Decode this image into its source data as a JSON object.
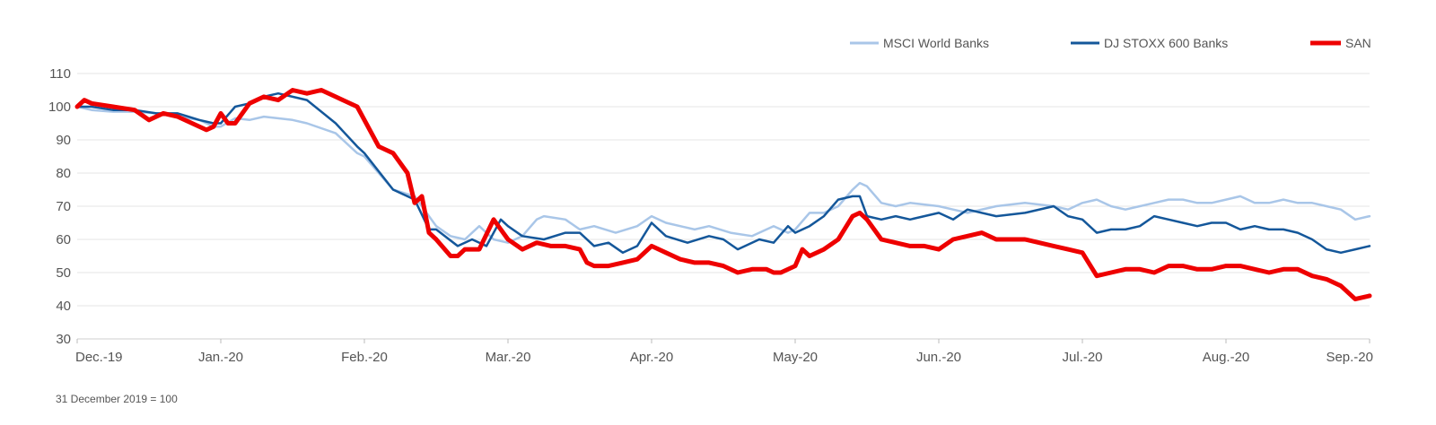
{
  "chart_data": {
    "type": "line",
    "title": "",
    "xlabel": "",
    "ylabel": "",
    "ylim": [
      30,
      110
    ],
    "yticks": [
      30,
      40,
      50,
      60,
      70,
      80,
      90,
      100,
      110
    ],
    "grid": true,
    "legend_position": "top-right",
    "x_tick_labels": [
      "Dec.-19",
      "Jan.-20",
      "Feb.-20",
      "Mar.-20",
      "Apr.-20",
      "May-20",
      "Jun.-20",
      "Jul.-20",
      "Aug.-20",
      "Sep.-20"
    ],
    "x_range": [
      0,
      9
    ],
    "series": [
      {
        "name": "MSCI World Banks",
        "color": "#a9c6e8",
        "x": [
          0,
          0.1,
          0.25,
          0.4,
          0.55,
          0.7,
          0.85,
          0.95,
          1.0,
          1.1,
          1.2,
          1.3,
          1.5,
          1.6,
          1.8,
          1.95,
          2.0,
          2.2,
          2.35,
          2.5,
          2.6,
          2.7,
          2.8,
          2.9,
          3.0,
          3.1,
          3.2,
          3.25,
          3.4,
          3.5,
          3.6,
          3.75,
          3.9,
          4.0,
          4.1,
          4.3,
          4.4,
          4.55,
          4.7,
          4.85,
          4.95,
          5.0,
          5.1,
          5.2,
          5.3,
          5.4,
          5.45,
          5.5,
          5.6,
          5.7,
          5.8,
          6.0,
          6.1,
          6.2,
          6.4,
          6.6,
          6.8,
          6.9,
          7.0,
          7.1,
          7.2,
          7.3,
          7.4,
          7.5,
          7.6,
          7.7,
          7.8,
          7.9,
          8.0,
          8.1,
          8.2,
          8.3,
          8.4,
          8.5,
          8.6,
          8.7,
          8.8,
          8.9,
          9.0
        ],
        "values": [
          100,
          99,
          98.5,
          98.5,
          98,
          97,
          96,
          94,
          94,
          96.5,
          96,
          97,
          96,
          95,
          92,
          86,
          85,
          75,
          73,
          64,
          61,
          60,
          64,
          60,
          59,
          61,
          66,
          67,
          66,
          63,
          64,
          62,
          64,
          67,
          65,
          63,
          64,
          62,
          61,
          64,
          62,
          63,
          68,
          68,
          70,
          75,
          77,
          76,
          71,
          70,
          71,
          70,
          69,
          68,
          70,
          71,
          70,
          69,
          71,
          72,
          70,
          69,
          70,
          71,
          72,
          72,
          71,
          71,
          72,
          73,
          71,
          71,
          72,
          71,
          71,
          70,
          69,
          66,
          67
        ]
      },
      {
        "name": "DJ STOXX 600 Banks",
        "color": "#14579a",
        "x": [
          0,
          0.1,
          0.25,
          0.4,
          0.55,
          0.7,
          0.85,
          0.95,
          1.0,
          1.1,
          1.2,
          1.3,
          1.4,
          1.5,
          1.6,
          1.8,
          1.95,
          2.0,
          2.2,
          2.35,
          2.45,
          2.5,
          2.65,
          2.75,
          2.85,
          2.95,
          3.0,
          3.1,
          3.25,
          3.4,
          3.5,
          3.6,
          3.7,
          3.8,
          3.9,
          4.0,
          4.1,
          4.25,
          4.4,
          4.5,
          4.6,
          4.75,
          4.85,
          4.95,
          5.0,
          5.1,
          5.2,
          5.3,
          5.4,
          5.45,
          5.5,
          5.6,
          5.7,
          5.8,
          6.0,
          6.1,
          6.2,
          6.4,
          6.6,
          6.8,
          6.9,
          7.0,
          7.1,
          7.2,
          7.3,
          7.4,
          7.5,
          7.6,
          7.7,
          7.8,
          7.9,
          8.0,
          8.1,
          8.2,
          8.3,
          8.4,
          8.5,
          8.6,
          8.7,
          8.8,
          8.9,
          9.0
        ],
        "values": [
          100,
          100,
          99,
          99,
          98,
          98,
          96,
          95,
          95,
          100,
          101,
          103,
          104,
          103,
          102,
          95,
          88,
          86,
          75,
          72,
          63,
          63,
          58,
          60,
          58,
          66,
          64,
          61,
          60,
          62,
          62,
          58,
          59,
          56,
          58,
          65,
          61,
          59,
          61,
          60,
          57,
          60,
          59,
          64,
          62,
          64,
          67,
          72,
          73,
          73,
          67,
          66,
          67,
          66,
          68,
          66,
          69,
          67,
          68,
          70,
          67,
          66,
          62,
          63,
          63,
          64,
          67,
          66,
          65,
          64,
          65,
          65,
          63,
          64,
          63,
          63,
          62,
          60,
          57,
          56,
          57,
          58
        ]
      },
      {
        "name": "SAN",
        "color": "#ee0000",
        "x": [
          0,
          0.05,
          0.1,
          0.25,
          0.4,
          0.5,
          0.6,
          0.7,
          0.8,
          0.9,
          0.95,
          1.0,
          1.05,
          1.1,
          1.2,
          1.3,
          1.4,
          1.5,
          1.6,
          1.7,
          1.8,
          1.85,
          1.95,
          2.1,
          2.15,
          2.2,
          2.3,
          2.35,
          2.4,
          2.45,
          2.5,
          2.6,
          2.65,
          2.7,
          2.75,
          2.8,
          2.9,
          2.95,
          3.0,
          3.1,
          3.2,
          3.3,
          3.4,
          3.5,
          3.55,
          3.6,
          3.7,
          3.8,
          3.9,
          4.0,
          4.1,
          4.2,
          4.3,
          4.4,
          4.5,
          4.6,
          4.7,
          4.8,
          4.85,
          4.9,
          5.0,
          5.05,
          5.1,
          5.2,
          5.3,
          5.4,
          5.45,
          5.5,
          5.6,
          5.7,
          5.8,
          5.9,
          6.0,
          6.1,
          6.2,
          6.3,
          6.4,
          6.5,
          6.6,
          6.7,
          6.8,
          6.9,
          7.0,
          7.1,
          7.2,
          7.3,
          7.4,
          7.5,
          7.6,
          7.7,
          7.8,
          7.9,
          8.0,
          8.1,
          8.2,
          8.3,
          8.4,
          8.5,
          8.6,
          8.7,
          8.8,
          8.9,
          9.0
        ],
        "values": [
          100,
          102,
          101,
          100,
          99,
          96,
          98,
          97,
          95,
          93,
          94,
          98,
          95,
          95,
          101,
          103,
          102,
          105,
          104,
          105,
          103,
          102,
          100,
          88,
          87,
          86,
          80,
          71,
          73,
          62,
          60,
          55,
          55,
          57,
          57,
          57,
          66,
          63,
          60,
          57,
          59,
          58,
          58,
          57,
          53,
          52,
          52,
          53,
          54,
          58,
          56,
          54,
          53,
          53,
          52,
          50,
          51,
          51,
          50,
          50,
          52,
          57,
          55,
          57,
          60,
          67,
          68,
          66,
          60,
          59,
          58,
          58,
          57,
          60,
          61,
          62,
          60,
          60,
          60,
          59,
          58,
          57,
          56,
          49,
          50,
          51,
          51,
          50,
          52,
          52,
          51,
          51,
          52,
          52,
          51,
          50,
          51,
          51,
          49,
          48,
          46,
          42,
          43
        ]
      }
    ],
    "footnote": "31 December 2019 = 100"
  }
}
